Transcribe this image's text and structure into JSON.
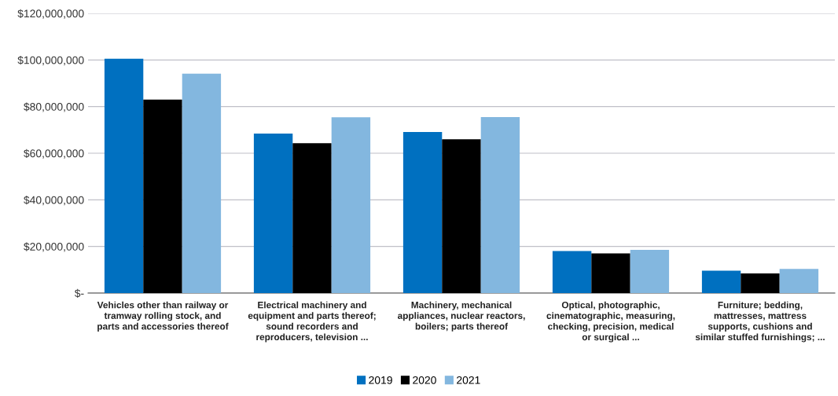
{
  "chart_data": {
    "type": "bar",
    "categories": [
      "Vehicles other than railway or tramway rolling stock, and parts and accessories thereof",
      "Electrical machinery and equipment and parts thereof; sound recorders and reproducers, television ...",
      "Machinery, mechanical appliances, nuclear reactors, boilers; parts thereof",
      "Optical, photographic, cinematographic, measuring, checking, precision, medical or surgical ...",
      "Furniture; bedding, mattresses, mattress supports, cushions and similar stuffed furnishings; ..."
    ],
    "series": [
      {
        "name": "2019",
        "color": "#0070c0",
        "values": [
          100500000,
          68400000,
          69100000,
          18000000,
          9600000
        ]
      },
      {
        "name": "2020",
        "color": "#000000",
        "values": [
          83000000,
          64300000,
          66000000,
          17000000,
          8400000
        ]
      },
      {
        "name": "2021",
        "color": "#83b7df",
        "values": [
          94100000,
          75400000,
          75500000,
          18500000,
          10400000
        ]
      }
    ],
    "ylim": [
      0,
      120000000
    ],
    "yticks": [
      {
        "value": 0,
        "label": "$-"
      },
      {
        "value": 20000000,
        "label": "$20,000,000"
      },
      {
        "value": 40000000,
        "label": "$40,000,000"
      },
      {
        "value": 60000000,
        "label": "$60,000,000"
      },
      {
        "value": 80000000,
        "label": "$80,000,000"
      },
      {
        "value": 100000000,
        "label": "$100,000,000"
      },
      {
        "value": 120000000,
        "label": "$120,000,000"
      }
    ],
    "grid": "y",
    "legend": "bottom"
  }
}
